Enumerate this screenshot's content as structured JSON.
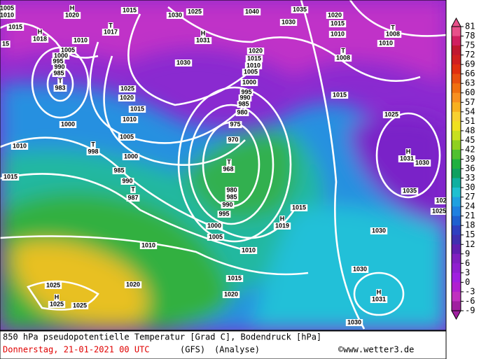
{
  "map": {
    "labels": [
      "1005",
      "1010",
      "H",
      "1020",
      "1015",
      "1030",
      "1025",
      "1040",
      "1035",
      "1030",
      "1020",
      "1015",
      "1010",
      "T",
      "1008",
      "1010",
      "T",
      "1008",
      "1015",
      "H",
      "1018",
      "15",
      "T",
      "1017",
      "H",
      "1031",
      "1010",
      "1005",
      "1000",
      "995",
      "990",
      "985",
      "T",
      "983",
      "1030",
      "1020",
      "1015",
      "1010",
      "1005",
      "1000",
      "995",
      "990",
      "985",
      "980",
      "975",
      "970",
      "T",
      "968",
      "1025",
      "1020",
      "1015",
      "1010",
      "1005",
      "1000",
      "1000",
      "1010",
      "T",
      "998",
      "1015",
      "985",
      "990",
      "T",
      "987",
      "980",
      "985",
      "990",
      "995",
      "1000",
      "1005",
      "1010",
      "1010",
      "1015",
      "H",
      "1019",
      "1015",
      "1025",
      "H",
      "1031",
      "1030",
      "1035",
      "102",
      "1025",
      "1030",
      "1030",
      "H",
      "1031",
      "1030",
      "1015",
      "1020",
      "1020",
      "1025",
      "H",
      "1025",
      "1025"
    ]
  },
  "legend": {
    "ticks": [
      81,
      78,
      75,
      72,
      69,
      66,
      63,
      60,
      57,
      54,
      51,
      48,
      45,
      42,
      39,
      36,
      33,
      30,
      27,
      24,
      21,
      18,
      15,
      12,
      9,
      6,
      3,
      0,
      -3,
      -6,
      -9
    ],
    "colors": [
      "#e8508a",
      "#d02060",
      "#c01830",
      "#d02020",
      "#e03010",
      "#e85010",
      "#f07010",
      "#f89020",
      "#f8b020",
      "#f8d030",
      "#f0e020",
      "#c8e020",
      "#90d020",
      "#50c030",
      "#20b040",
      "#10a060",
      "#10b0a0",
      "#20c0d0",
      "#20a0e0",
      "#2080e0",
      "#2060d0",
      "#3040c0",
      "#4030b0",
      "#6020b0",
      "#8020c0",
      "#9020d0",
      "#a020e0",
      "#b020d0",
      "#c030c0",
      "#a020a0"
    ]
  },
  "footer": {
    "description": "850 hPa pseudopotentielle Temperatur [Grad C], Bodendruck [hPa]",
    "date": "Donnerstag, 21-01-2021  00 UTC",
    "model": "(GFS)",
    "run": "(Analyse)",
    "credit": "©www.wetter3.de"
  }
}
